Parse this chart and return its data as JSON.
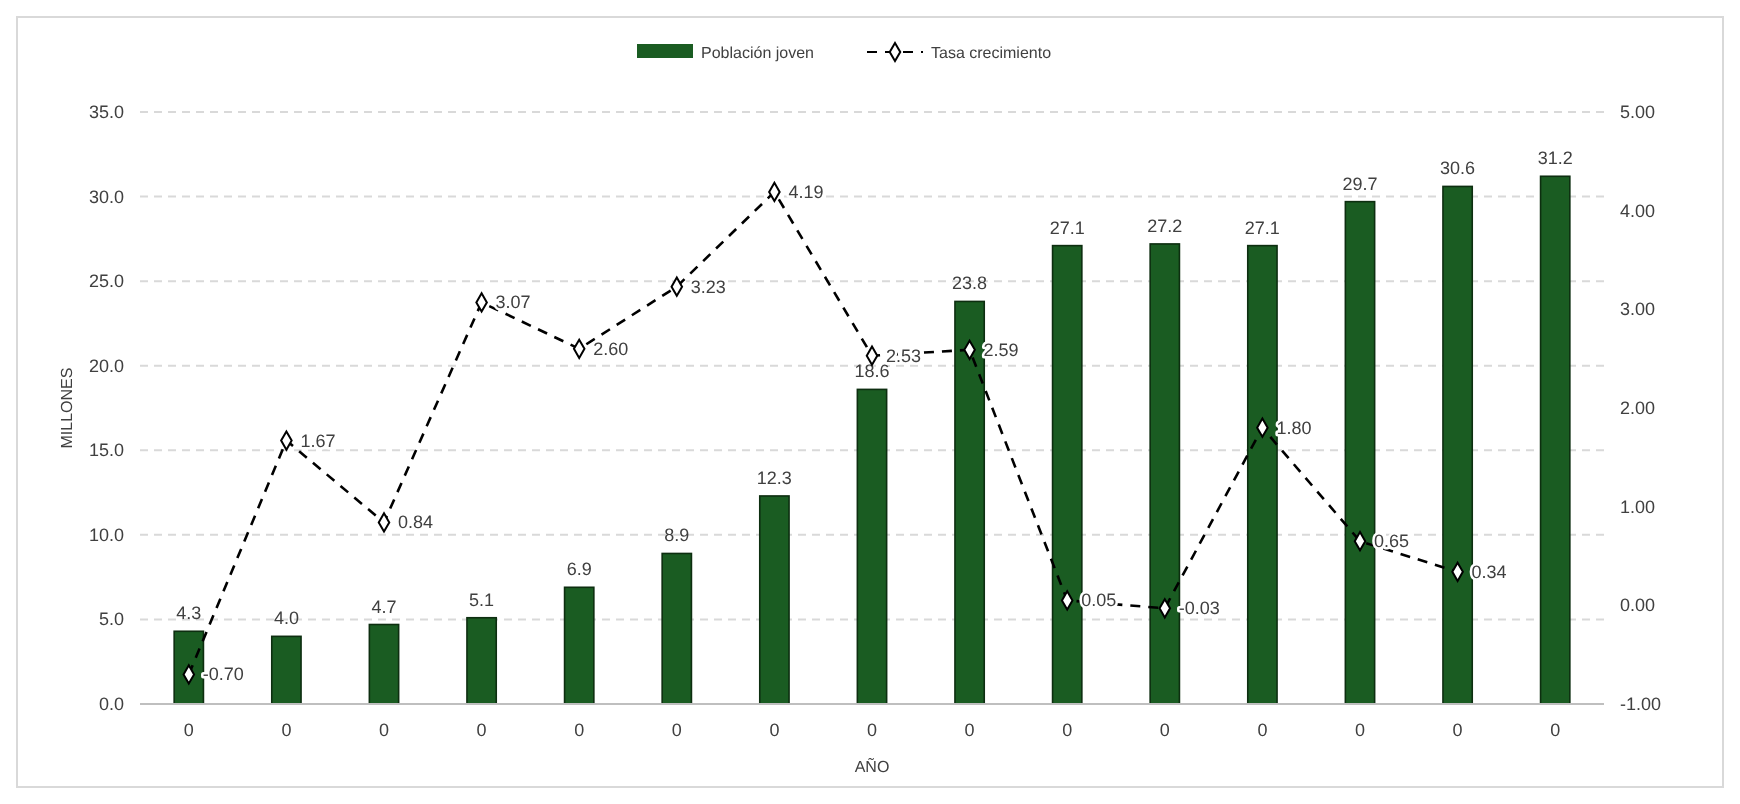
{
  "chart_data": {
    "type": "bar",
    "xlabel": "AÑO",
    "ylabel": "MILLONES",
    "categories": [
      "0",
      "0",
      "0",
      "0",
      "0",
      "0",
      "0",
      "0",
      "0",
      "0",
      "0",
      "0",
      "0",
      "0",
      "0"
    ],
    "series": [
      {
        "name": "Población joven",
        "color": "#1a5c22",
        "values": [
          4.3,
          4.0,
          4.7,
          5.1,
          6.9,
          8.9,
          12.3,
          18.6,
          23.8,
          27.1,
          27.2,
          27.1,
          29.7,
          30.6,
          31.2
        ],
        "value_labels": [
          "4.3",
          "4.0",
          "4.7",
          "5.1",
          "6.9",
          "8.9",
          "12.3",
          "18.6",
          "23.8",
          "27.1",
          "27.2",
          "27.1",
          "29.7",
          "30.6",
          "31.2"
        ]
      },
      {
        "name": "Tasa crecimiento",
        "type": "line",
        "axis": "y2",
        "color": "#000000",
        "marker": "diamond",
        "line_style": "dashed",
        "values": [
          -0.7,
          1.67,
          0.84,
          3.07,
          2.6,
          3.23,
          4.19,
          2.53,
          2.59,
          0.05,
          -0.03,
          1.8,
          0.65,
          0.34,
          null
        ],
        "value_labels": [
          "-0.70",
          "1.67",
          "0.84",
          "3.07",
          "2.60",
          "3.23",
          "4.19",
          "2.53",
          "2.59",
          "0.05",
          "-0.03",
          "1.80",
          "0.65",
          "0.34",
          null
        ]
      }
    ],
    "ylim": [
      0,
      35
    ],
    "yticks": [
      {
        "value": 0,
        "label": "0.0"
      },
      {
        "value": 5,
        "label": "5.0"
      },
      {
        "value": 10,
        "label": "10.0"
      },
      {
        "value": 15,
        "label": "15.0"
      },
      {
        "value": 20,
        "label": "20.0"
      },
      {
        "value": 25,
        "label": "25.0"
      },
      {
        "value": 30,
        "label": "30.0"
      },
      {
        "value": 35,
        "label": "35.0"
      }
    ],
    "y2lim": [
      -1,
      5
    ],
    "y2ticks": [
      {
        "value": -1,
        "label": "-1.00"
      },
      {
        "value": 0,
        "label": "0.00"
      },
      {
        "value": 1,
        "label": "1.00"
      },
      {
        "value": 2,
        "label": "2.00"
      },
      {
        "value": 3,
        "label": "3.00"
      },
      {
        "value": 4,
        "label": "4.00"
      },
      {
        "value": 5,
        "label": "5.00"
      }
    ],
    "grid": "y",
    "legend": "top"
  }
}
